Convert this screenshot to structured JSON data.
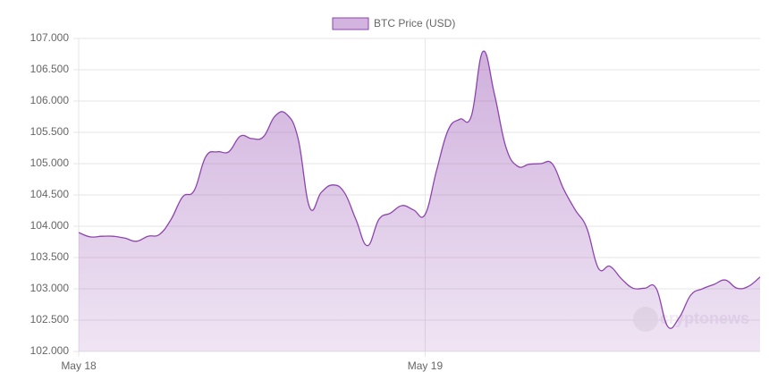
{
  "chart_data": {
    "type": "area",
    "categories": [
      "May 18",
      null,
      null,
      null,
      null,
      null,
      null,
      null,
      null,
      null,
      null,
      null,
      null,
      null,
      null,
      null,
      null,
      null,
      null,
      null,
      null,
      null,
      null,
      null,
      null,
      null,
      null,
      null,
      null,
      null,
      "May 19",
      null,
      null,
      null,
      null,
      null,
      null,
      null,
      null,
      null,
      null,
      null,
      null,
      null,
      null,
      null,
      null,
      null,
      null,
      null,
      null,
      null,
      null,
      null,
      null,
      null,
      null,
      null,
      null,
      null
    ],
    "series": [
      {
        "name": "BTC Price (USD)",
        "color": "#8e44ad",
        "values": [
          103900,
          103830,
          103840,
          103840,
          103810,
          103760,
          103840,
          103870,
          104110,
          104470,
          104570,
          105110,
          105190,
          105190,
          105440,
          105400,
          105430,
          105760,
          105790,
          105400,
          104300,
          104540,
          104660,
          104540,
          104110,
          103690,
          104110,
          104210,
          104330,
          104260,
          104190,
          104900,
          105540,
          105710,
          105760,
          106790,
          106110,
          105260,
          104960,
          104990,
          105000,
          105000,
          104590,
          104260,
          103970,
          103330,
          103360,
          103160,
          103010,
          103010,
          103010,
          102400,
          102540,
          102900,
          103000,
          103070,
          103140,
          103010,
          103040,
          103190
        ]
      }
    ],
    "ylim": [
      102000,
      107000
    ],
    "yticks": [
      {
        "value": 102000,
        "label": "102.000"
      },
      {
        "value": 102500,
        "label": "102.500"
      },
      {
        "value": 103000,
        "label": "103.000"
      },
      {
        "value": 103500,
        "label": "103.500"
      },
      {
        "value": 104000,
        "label": "104.000"
      },
      {
        "value": 104500,
        "label": "104.500"
      },
      {
        "value": 105000,
        "label": "105.000"
      },
      {
        "value": 105500,
        "label": "105.500"
      },
      {
        "value": 106000,
        "label": "106.000"
      },
      {
        "value": 106500,
        "label": "106.500"
      },
      {
        "value": 107000,
        "label": "107.000"
      }
    ],
    "grid": true,
    "legend": "top",
    "watermark": "cryptonews"
  }
}
